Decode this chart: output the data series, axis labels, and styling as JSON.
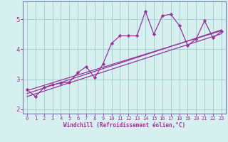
{
  "xlabel": "Windchill (Refroidissement éolien,°C)",
  "xlim": [
    -0.5,
    23.5
  ],
  "ylim": [
    1.85,
    5.6
  ],
  "yticks": [
    2,
    3,
    4,
    5
  ],
  "xticks": [
    0,
    1,
    2,
    3,
    4,
    5,
    6,
    7,
    8,
    9,
    10,
    11,
    12,
    13,
    14,
    15,
    16,
    17,
    18,
    19,
    20,
    21,
    22,
    23
  ],
  "bg_color": "#d6f0f0",
  "grid_color": "#a0cccc",
  "line_color": "#993399",
  "data_x": [
    0,
    1,
    2,
    3,
    4,
    5,
    6,
    7,
    8,
    9,
    10,
    11,
    12,
    13,
    14,
    15,
    16,
    17,
    18,
    19,
    20,
    21,
    22,
    23
  ],
  "data_y": [
    2.65,
    2.42,
    2.72,
    2.82,
    2.87,
    2.9,
    3.22,
    3.42,
    3.05,
    3.52,
    4.2,
    4.45,
    4.45,
    4.45,
    5.27,
    4.5,
    5.12,
    5.17,
    4.8,
    4.12,
    4.35,
    4.95,
    4.38,
    4.6
  ],
  "trend_lines": [
    {
      "x": [
        0,
        23
      ],
      "y": [
        2.62,
        4.62
      ]
    },
    {
      "x": [
        0,
        23
      ],
      "y": [
        2.42,
        4.52
      ]
    },
    {
      "x": [
        0,
        23
      ],
      "y": [
        2.52,
        4.65
      ]
    }
  ],
  "border_color": "#7777aa",
  "tick_fontsize": 5,
  "xlabel_fontsize": 5.5
}
